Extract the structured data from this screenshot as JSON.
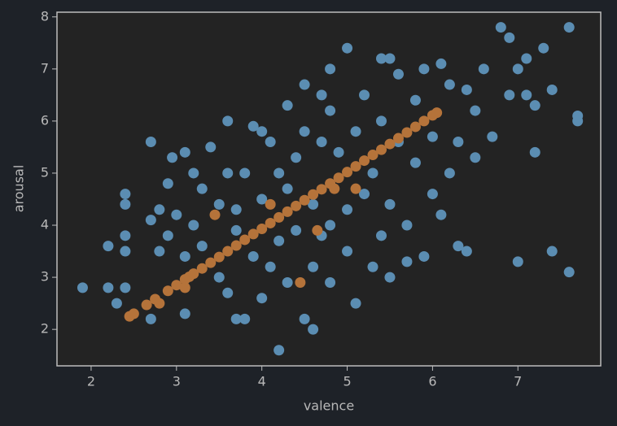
{
  "chart_data": {
    "type": "scatter",
    "xlabel": "valence",
    "ylabel": "arousal",
    "xlim": [
      1.6,
      7.97
    ],
    "ylim": [
      1.3,
      8.09
    ],
    "xticks": [
      2,
      3,
      4,
      5,
      6,
      7
    ],
    "yticks": [
      2,
      3,
      4,
      5,
      6,
      7,
      8
    ],
    "series": [
      {
        "color": "#5b8db2",
        "x": [
          1.9,
          2.2,
          2.2,
          2.3,
          2.4,
          2.4,
          2.4,
          2.4,
          2.4,
          2.7,
          2.7,
          2.7,
          2.8,
          2.8,
          2.9,
          2.9,
          2.95,
          3.0,
          3.1,
          3.1,
          3.1,
          3.2,
          3.2,
          3.3,
          3.3,
          3.4,
          3.5,
          3.5,
          3.6,
          3.6,
          3.7,
          3.7,
          3.7,
          3.6,
          3.8,
          3.8,
          3.9,
          3.9,
          4.0,
          4.0,
          4.0,
          4.1,
          4.1,
          4.2,
          4.2,
          4.2,
          4.3,
          4.3,
          4.3,
          4.4,
          4.4,
          4.5,
          4.5,
          4.5,
          4.6,
          4.6,
          4.6,
          4.7,
          4.7,
          4.7,
          4.8,
          4.8,
          4.8,
          4.8,
          4.9,
          5.0,
          5.0,
          5.0,
          5.1,
          5.1,
          5.2,
          5.2,
          5.3,
          5.3,
          5.4,
          5.4,
          5.4,
          5.5,
          5.5,
          5.5,
          5.6,
          5.6,
          5.7,
          5.7,
          5.8,
          5.8,
          5.9,
          5.9,
          6.0,
          6.0,
          6.1,
          6.1,
          6.2,
          6.2,
          6.3,
          6.3,
          6.4,
          6.4,
          6.5,
          6.5,
          6.6,
          6.7,
          6.8,
          6.9,
          6.9,
          7.0,
          7.0,
          7.1,
          7.1,
          7.2,
          7.2,
          7.3,
          7.4,
          7.4,
          7.6,
          7.6,
          7.7,
          7.7
        ],
        "values": [
          2.8,
          2.8,
          3.6,
          2.5,
          2.8,
          3.5,
          3.8,
          4.4,
          4.6,
          5.6,
          4.1,
          2.2,
          3.5,
          4.3,
          3.8,
          4.8,
          5.3,
          4.2,
          5.4,
          3.4,
          2.3,
          4.0,
          5.0,
          4.7,
          3.6,
          5.5,
          4.4,
          3.0,
          5.0,
          2.7,
          4.3,
          2.2,
          3.9,
          6.0,
          2.2,
          5.0,
          5.9,
          3.4,
          5.8,
          4.5,
          2.6,
          5.6,
          3.2,
          1.6,
          5.0,
          3.7,
          4.7,
          2.9,
          6.3,
          5.3,
          3.9,
          6.7,
          2.2,
          5.8,
          3.2,
          4.4,
          2.0,
          6.5,
          5.6,
          3.8,
          7.0,
          6.2,
          4.0,
          2.9,
          5.4,
          7.4,
          4.3,
          3.5,
          5.8,
          2.5,
          6.5,
          4.6,
          5.0,
          3.2,
          7.2,
          6.0,
          3.8,
          7.2,
          4.4,
          3.0,
          6.9,
          5.6,
          4.0,
          3.3,
          6.4,
          5.2,
          7.0,
          3.4,
          5.7,
          4.6,
          7.1,
          4.2,
          6.7,
          5.0,
          3.6,
          5.6,
          6.6,
          3.5,
          6.2,
          5.3,
          7.0,
          5.7,
          7.8,
          7.6,
          6.5,
          7.0,
          3.3,
          7.2,
          6.5,
          5.4,
          6.3,
          7.4,
          6.6,
          3.5,
          7.8,
          3.1,
          6.1,
          6.0
        ]
      },
      {
        "color": "#b5733a",
        "x": [
          2.45,
          2.5,
          2.65,
          2.75,
          2.9,
          3.0,
          3.1,
          3.15,
          3.2,
          3.3,
          3.4,
          3.5,
          3.6,
          3.7,
          3.8,
          3.9,
          4.0,
          4.1,
          4.2,
          4.3,
          4.4,
          4.5,
          4.6,
          4.7,
          4.8,
          4.9,
          5.0,
          5.1,
          5.2,
          5.3,
          5.4,
          5.5,
          5.6,
          5.7,
          5.8,
          5.9,
          6.0,
          6.05,
          3.45,
          4.1,
          4.85,
          4.45,
          4.65,
          5.1,
          2.8,
          3.1
        ],
        "values": [
          2.25,
          2.3,
          2.47,
          2.58,
          2.74,
          2.85,
          2.96,
          3.01,
          3.07,
          3.17,
          3.28,
          3.39,
          3.5,
          3.61,
          3.72,
          3.83,
          3.93,
          4.04,
          4.15,
          4.26,
          4.37,
          4.48,
          4.59,
          4.69,
          4.8,
          4.91,
          5.02,
          5.13,
          5.24,
          5.35,
          5.45,
          5.56,
          5.67,
          5.78,
          5.89,
          6.0,
          6.11,
          6.16,
          4.2,
          4.4,
          4.7,
          2.9,
          3.9,
          4.7,
          2.5,
          2.8
        ]
      }
    ]
  }
}
